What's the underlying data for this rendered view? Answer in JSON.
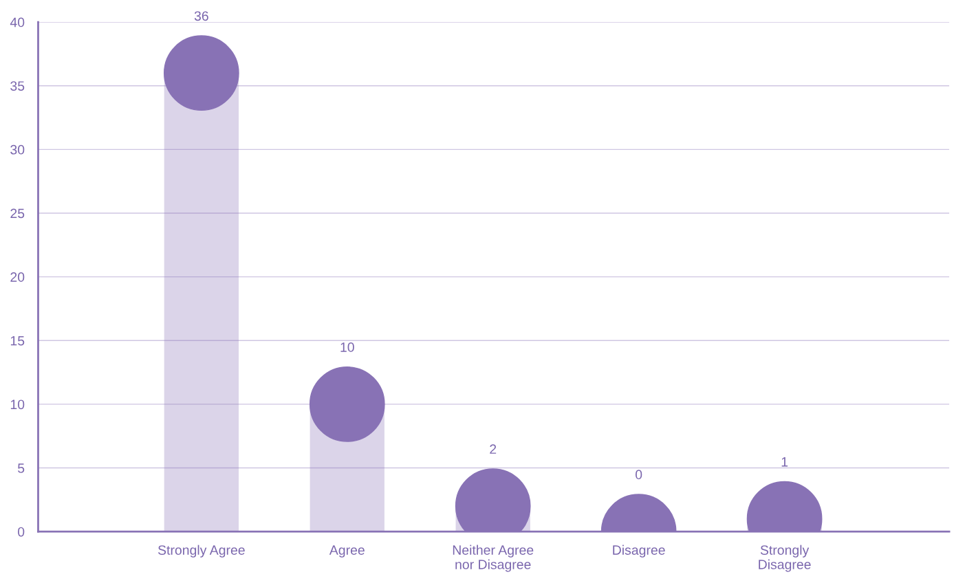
{
  "chart_data": {
    "type": "lollipop",
    "categories": [
      "Strongly Agree",
      "Agree",
      "Neither Agree\nnor Disagree",
      "Disagree",
      "Strongly\nDisagree"
    ],
    "values": [
      36,
      10,
      2,
      0,
      1
    ],
    "color": "#8872b5",
    "ylim": [
      0,
      40
    ],
    "yticks": [
      0,
      5,
      10,
      15,
      20,
      25,
      30,
      35,
      40
    ],
    "grid": "y",
    "data_labels": true,
    "marker": "circle"
  }
}
